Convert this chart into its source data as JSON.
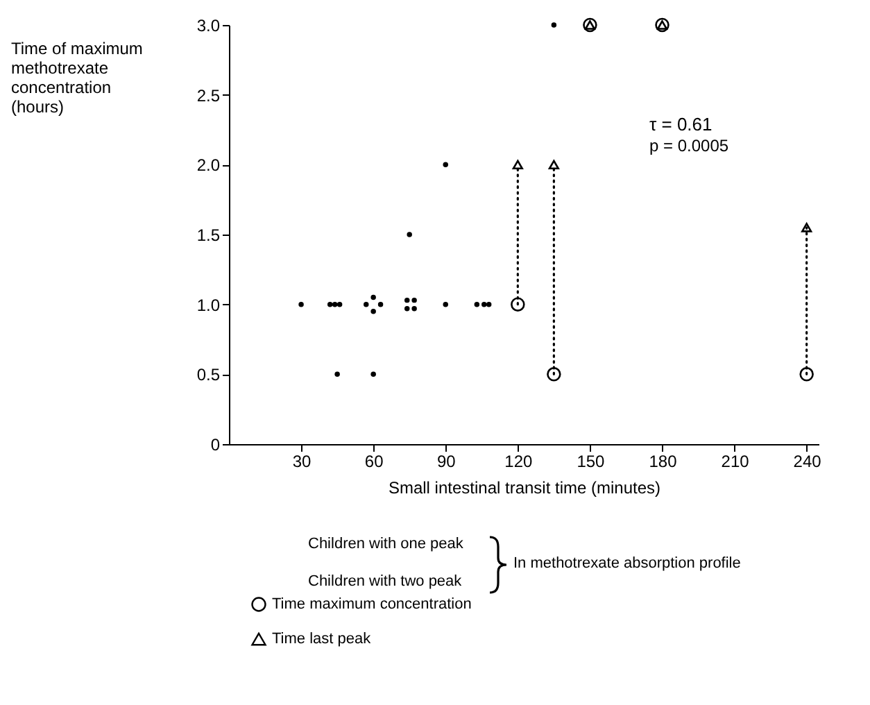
{
  "chart_data": {
    "type": "scatter",
    "xlabel": "Small intestinal transit time (minutes)",
    "ylabel": "Time of maximum methotrexate concentration (hours)",
    "xlim": [
      0,
      245
    ],
    "xticks": [
      30,
      60,
      90,
      120,
      150,
      180,
      210,
      240
    ],
    "ylim": [
      0,
      3
    ],
    "yticks": [
      0,
      {
        "value": 0.5,
        "label": "0.5"
      },
      {
        "value": 1,
        "label": "1.0"
      },
      {
        "value": 1.5,
        "label": "1.5"
      },
      {
        "value": 2,
        "label": "2.0"
      },
      {
        "value": 2.5,
        "label": "2.5"
      },
      {
        "value": 3,
        "label": "3.0"
      }
    ],
    "grid": false,
    "legend": "bottom left",
    "annotations": [
      "τ = 0.61",
      "p = 0.0005",
      "Children with one peak",
      "Children with two peak",
      "In methotrexate absorption profile"
    ],
    "series": [
      {
        "type": "scatter",
        "color": "#000000",
        "x": [
          30,
          42,
          44,
          46,
          45,
          57,
          60,
          60,
          63,
          60,
          74,
          77,
          74,
          77,
          75,
          90,
          90,
          103,
          106,
          108,
          135
        ],
        "values": [
          1,
          1,
          1,
          1,
          0.5,
          1,
          1.05,
          0.95,
          1,
          0.5,
          1.03,
          1.03,
          0.97,
          0.97,
          1.5,
          2,
          1,
          1,
          1,
          1,
          3
        ]
      },
      {
        "type": "line",
        "line_style": "dotted",
        "color": "#000000",
        "x": [
          120,
          120
        ],
        "values": [
          1,
          2
        ]
      },
      {
        "type": "line",
        "line_style": "dotted",
        "color": "#000000",
        "x": [
          135,
          135
        ],
        "values": [
          0.5,
          2
        ]
      },
      {
        "type": "line",
        "line_style": "dotted",
        "color": "#000000",
        "x": [
          240,
          240
        ],
        "values": [
          0.5,
          1.55
        ]
      },
      {
        "type": "scatter",
        "name": "Time maximum concentration",
        "marker": "circle",
        "color": "#000000",
        "x": [
          120,
          135,
          150,
          180,
          240
        ],
        "values": [
          1,
          0.5,
          3,
          3,
          0.5
        ]
      },
      {
        "type": "scatter",
        "name": "Time last peak",
        "marker": "triangle",
        "color": "#000000",
        "x": [
          120,
          135,
          150,
          180,
          240
        ],
        "values": [
          2,
          2,
          3,
          3,
          1.55
        ]
      }
    ]
  }
}
